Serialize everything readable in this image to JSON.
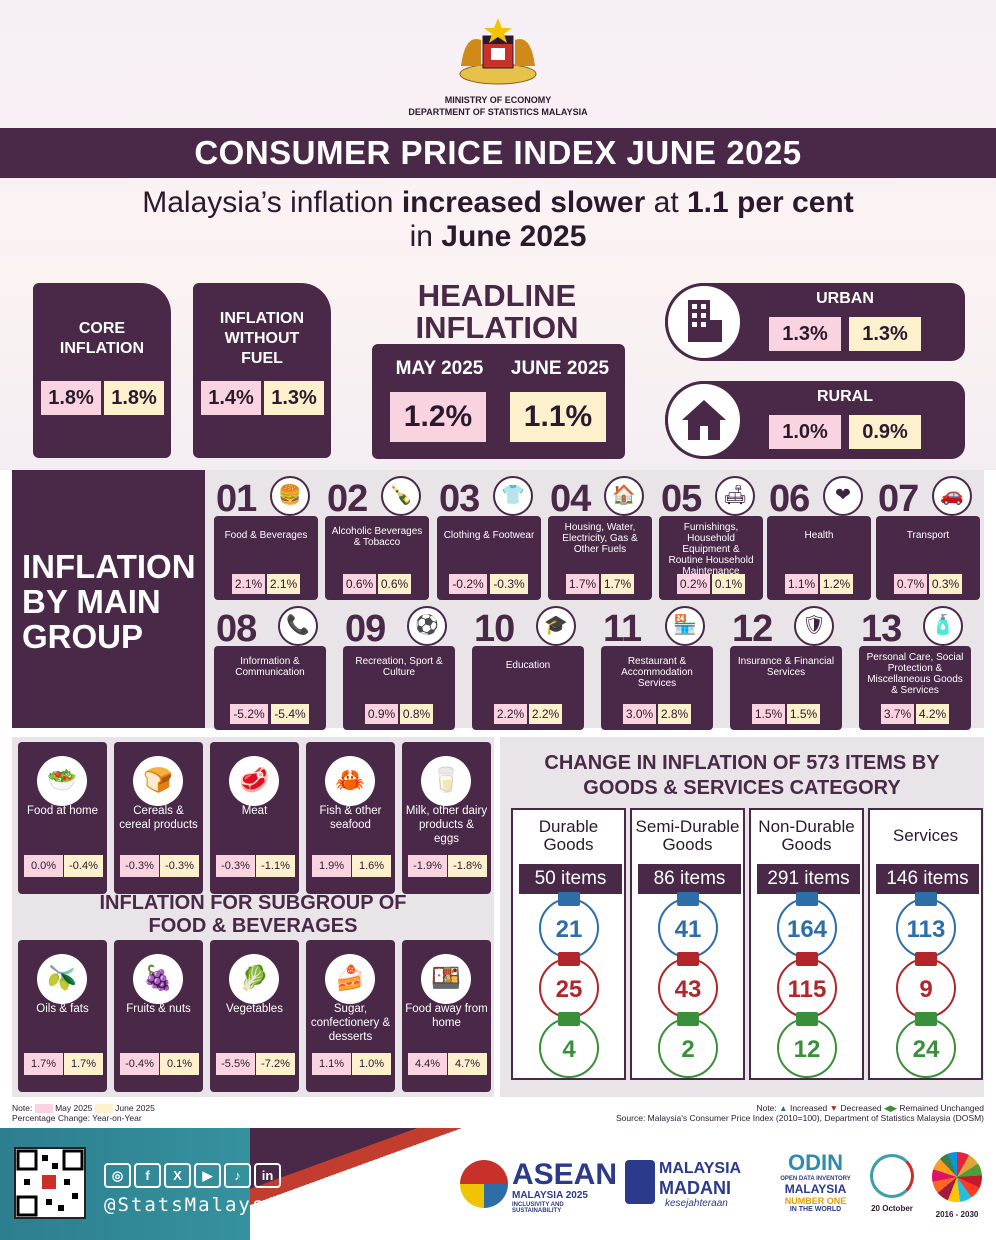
{
  "header": {
    "ministry_line1": "MINISTRY OF ECONOMY",
    "ministry_line2": "DEPARTMENT OF STATISTICS MALAYSIA",
    "title": "CONSUMER PRICE INDEX JUNE 2025",
    "subtitle_pre": "Malaysia’s inflation ",
    "subtitle_bold1": "increased slower",
    "subtitle_mid": " at ",
    "subtitle_bold2": "1.1 per cent",
    "subtitle_line2_pre": "in ",
    "subtitle_line2_bold": "June 2025"
  },
  "core": {
    "label": "CORE INFLATION",
    "may": "1.8%",
    "june": "1.8%"
  },
  "nofuel": {
    "label": "INFLATION WITHOUT FUEL",
    "may": "1.4%",
    "june": "1.3%"
  },
  "headline": {
    "title": "HEADLINE INFLATION",
    "may_label": "MAY 2025",
    "june_label": "JUNE 2025",
    "may": "1.2%",
    "june": "1.1%"
  },
  "urban": {
    "label": "URBAN",
    "may": "1.3%",
    "june": "1.3%",
    "icon": "building-icon"
  },
  "rural": {
    "label": "RURAL",
    "may": "1.0%",
    "june": "0.9%",
    "icon": "house-icon"
  },
  "main_group": {
    "title": "INFLATION BY MAIN GROUP",
    "groups": [
      {
        "num": "01",
        "name": "Food & Beverages",
        "may": "2.1%",
        "june": "2.1%",
        "icon": "🍔"
      },
      {
        "num": "02",
        "name": "Alcoholic Beverages & Tobacco",
        "may": "0.6%",
        "june": "0.6%",
        "icon": "🍾"
      },
      {
        "num": "03",
        "name": "Clothing & Footwear",
        "may": "-0.2%",
        "june": "-0.3%",
        "icon": "👕"
      },
      {
        "num": "04",
        "name": "Housing, Water, Electricity, Gas & Other Fuels",
        "may": "1.7%",
        "june": "1.7%",
        "icon": "🏠"
      },
      {
        "num": "05",
        "name": "Furnishings, Household Equipment & Routine Household Maintenance",
        "may": "0.2%",
        "june": "0.1%",
        "icon": "🛋"
      },
      {
        "num": "06",
        "name": "Health",
        "may": "1.1%",
        "june": "1.2%",
        "icon": "❤"
      },
      {
        "num": "07",
        "name": "Transport",
        "may": "0.7%",
        "june": "0.3%",
        "icon": "🚗"
      },
      {
        "num": "08",
        "name": "Information & Communication",
        "may": "-5.2%",
        "june": "-5.4%",
        "icon": "📞"
      },
      {
        "num": "09",
        "name": "Recreation, Sport & Culture",
        "may": "0.9%",
        "june": "0.8%",
        "icon": "⚽"
      },
      {
        "num": "10",
        "name": "Education",
        "may": "2.2%",
        "june": "2.2%",
        "icon": "🎓"
      },
      {
        "num": "11",
        "name": "Restaurant & Accommodation Services",
        "may": "3.0%",
        "june": "2.8%",
        "icon": "🏪"
      },
      {
        "num": "12",
        "name": "Insurance & Financial Services",
        "may": "1.5%",
        "june": "1.5%",
        "icon": "🛡"
      },
      {
        "num": "13",
        "name": "Personal Care, Social Protection & Miscellaneous Goods & Services",
        "may": "3.7%",
        "june": "4.2%",
        "icon": "🧴"
      }
    ]
  },
  "food_sub": {
    "title": "INFLATION FOR SUBGROUP OF FOOD & BEVERAGES",
    "items": [
      {
        "name": "Food at home",
        "may": "0.0%",
        "june": "-0.4%",
        "icon": "🥗"
      },
      {
        "name": "Cereals & cereal products",
        "may": "-0.3%",
        "june": "-0.3%",
        "icon": "🍞"
      },
      {
        "name": "Meat",
        "may": "-0.3%",
        "june": "-1.1%",
        "icon": "🥩"
      },
      {
        "name": "Fish & other seafood",
        "may": "1.9%",
        "june": "1.6%",
        "icon": "🦀"
      },
      {
        "name": "Milk, other dairy products & eggs",
        "may": "-1.9%",
        "june": "-1.8%",
        "icon": "🥛"
      },
      {
        "name": "Oils & fats",
        "may": "1.7%",
        "june": "1.7%",
        "icon": "🫒"
      },
      {
        "name": "Fruits & nuts",
        "may": "-0.4%",
        "june": "0.1%",
        "icon": "🍇"
      },
      {
        "name": "Vegetables",
        "may": "-5.5%",
        "june": "-7.2%",
        "icon": "🥬"
      },
      {
        "name": "Sugar, confectionery & desserts",
        "may": "1.1%",
        "june": "1.0%",
        "icon": "🍰"
      },
      {
        "name": "Food away from home",
        "may": "4.4%",
        "june": "4.7%",
        "icon": "🍱"
      }
    ]
  },
  "categories": {
    "title": "CHANGE IN INFLATION OF 573 ITEMS BY GOODS & SERVICES CATEGORY",
    "cols": [
      {
        "name": "Durable Goods",
        "items": "50 items",
        "up": "21",
        "down": "25",
        "same": "4"
      },
      {
        "name": "Semi-Durable Goods",
        "items": "86 items",
        "up": "41",
        "down": "43",
        "same": "2"
      },
      {
        "name": "Non-Durable Goods",
        "items": "291 items",
        "up": "164",
        "down": "115",
        "same": "12"
      },
      {
        "name": "Services",
        "items": "146 items",
        "up": "113",
        "down": "9",
        "same": "24"
      }
    ]
  },
  "notes": {
    "note_label": "Note:",
    "may_label": "May 2025",
    "june_label": "June 2025",
    "pct": "Percentage Change: Year-on-Year",
    "legend_note": "Note:",
    "increased": "Increased",
    "decreased": "Decreased",
    "unchanged": "Remained Unchanged",
    "source": "Source: Malaysia's Consumer Price Index (2010=100), Department of Statistics Malaysia (DOSM)"
  },
  "footer": {
    "handle": "@StatsMalaysia",
    "asean_1": "ASEAN",
    "asean_2": "MALAYSIA 2025",
    "asean_3": "INCLUSIVITY AND SUSTAINABILITY",
    "madani_1": "MALAYSIA",
    "madani_2": "MADANI",
    "madani_3": "kesejahteraan",
    "odin_1": "ODIN",
    "odin_2": "OPEN DATA INVENTORY",
    "odin_3": "MALAYSIA",
    "odin_4": "NUMBER ONE",
    "odin_5": "IN THE WORLD",
    "date": "20 October",
    "sdg_years": "2016 - 2030"
  },
  "colors": {
    "primary": "#4a2848",
    "may": "#f9d4e0",
    "june": "#fdf0cc",
    "up": "#2e6ea8",
    "down": "#b0262a",
    "same": "#3a8f3a"
  }
}
